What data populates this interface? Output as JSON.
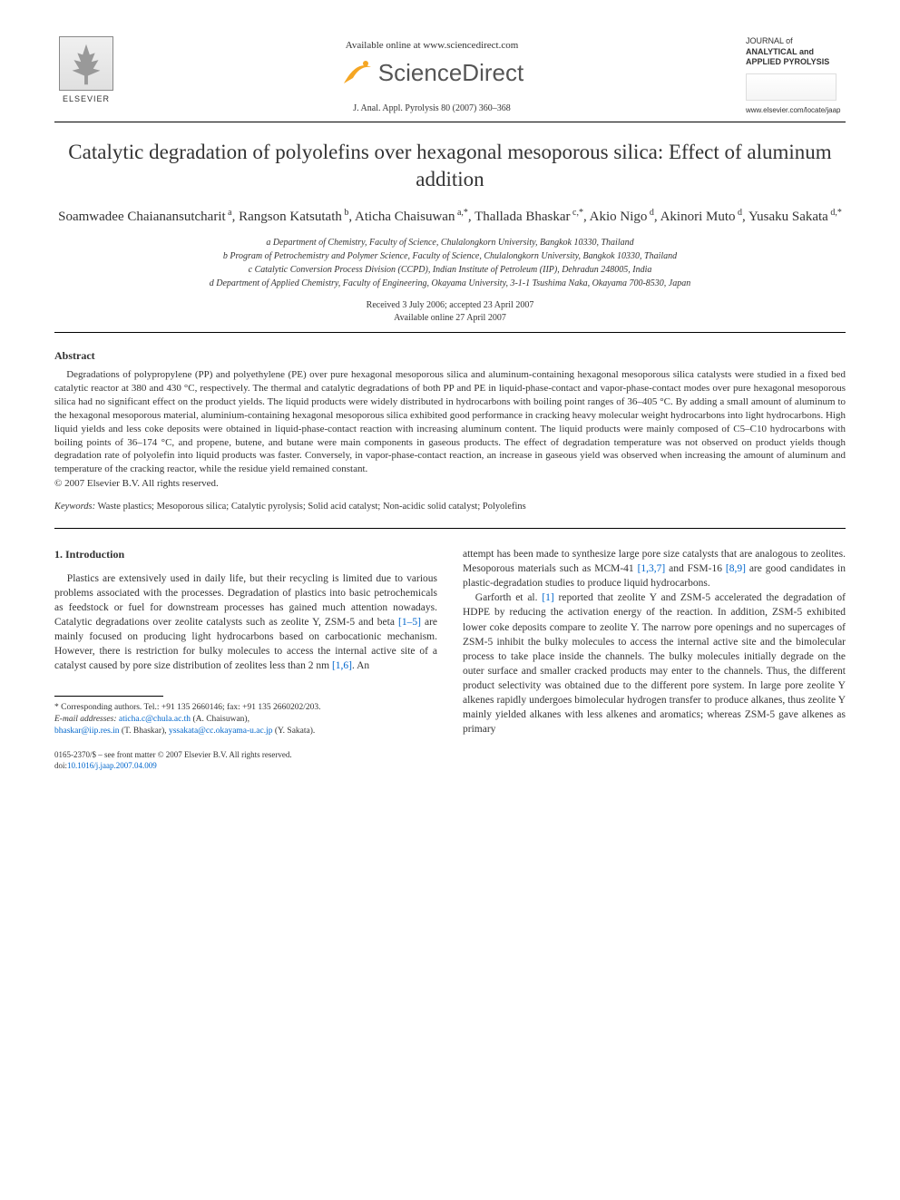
{
  "header": {
    "publisher": "ELSEVIER",
    "available_online": "Available online at www.sciencedirect.com",
    "sciencedirect": "ScienceDirect",
    "journal_ref": "J. Anal. Appl. Pyrolysis 80 (2007) 360–368",
    "journal_name_line1": "JOURNAL of",
    "journal_name_line2": "ANALYTICAL and",
    "journal_name_line3": "APPLIED PYROLYSIS",
    "journal_url": "www.elsevier.com/locate/jaap"
  },
  "title": "Catalytic degradation of polyolefins over hexagonal mesoporous silica: Effect of aluminum addition",
  "authors_html": "Soamwadee Chaianansutcharit<sup> a</sup>, Rangson Katsutath<sup> b</sup>, Aticha Chaisuwan<sup> a,*</sup>, Thallada Bhaskar<sup> c,*</sup>, Akio Nigo<sup> d</sup>, Akinori Muto<sup> d</sup>, Yusaku Sakata<sup> d,*</sup>",
  "affiliations": [
    "a Department of Chemistry, Faculty of Science, Chulalongkorn University, Bangkok 10330, Thailand",
    "b Program of Petrochemistry and Polymer Science, Faculty of Science, Chulalongkorn University, Bangkok 10330, Thailand",
    "c Catalytic Conversion Process Division (CCPD), Indian Institute of Petroleum (IIP), Dehradun 248005, India",
    "d Department of Applied Chemistry, Faculty of Engineering, Okayama University, 3-1-1 Tsushima Naka, Okayama 700-8530, Japan"
  ],
  "dates": {
    "received_accepted": "Received 3 July 2006; accepted 23 April 2007",
    "online": "Available online 27 April 2007"
  },
  "abstract": {
    "heading": "Abstract",
    "body": "Degradations of polypropylene (PP) and polyethylene (PE) over pure hexagonal mesoporous silica and aluminum-containing hexagonal mesoporous silica catalysts were studied in a fixed bed catalytic reactor at 380 and 430 °C, respectively. The thermal and catalytic degradations of both PP and PE in liquid-phase-contact and vapor-phase-contact modes over pure hexagonal mesoporous silica had no significant effect on the product yields. The liquid products were widely distributed in hydrocarbons with boiling point ranges of 36–405 °C. By adding a small amount of aluminum to the hexagonal mesoporous material, aluminium-containing hexagonal mesoporous silica exhibited good performance in cracking heavy molecular weight hydrocarbons into light hydrocarbons. High liquid yields and less coke deposits were obtained in liquid-phase-contact reaction with increasing aluminum content. The liquid products were mainly composed of C5–C10 hydrocarbons with boiling points of 36–174 °C, and propene, butene, and butane were main components in gaseous products. The effect of degradation temperature was not observed on product yields though degradation rate of polyolefin into liquid products was faster. Conversely, in vapor-phase-contact reaction, an increase in gaseous yield was observed when increasing the amount of aluminum and temperature of the cracking reactor, while the residue yield remained constant.",
    "copyright": "© 2007 Elsevier B.V. All rights reserved."
  },
  "keywords": {
    "label": "Keywords:",
    "items": "Waste plastics; Mesoporous silica; Catalytic pyrolysis; Solid acid catalyst; Non-acidic solid catalyst; Polyolefins"
  },
  "intro": {
    "heading": "1. Introduction",
    "col1_p1_pre": "Plastics are extensively used in daily life, but their recycling is limited due to various problems associated with the processes. Degradation of plastics into basic petrochemicals as feedstock or fuel for downstream processes has gained much attention nowadays. Catalytic degradations over zeolite catalysts such as zeolite Y, ZSM-5 and beta ",
    "col1_ref1": "[1–5]",
    "col1_p1_mid": " are mainly focused on producing light hydrocarbons based on carbocationic mechanism. However, there is restriction for bulky molecules to access the internal active site of a catalyst caused by pore size distribution of zeolites less than 2 nm ",
    "col1_ref2": "[1,6]",
    "col1_p1_post": ". An",
    "col2_p1_pre": "attempt has been made to synthesize large pore size catalysts that are analogous to zeolites. Mesoporous materials such as MCM-41 ",
    "col2_ref1": "[1,3,7]",
    "col2_p1_mid1": " and FSM-16 ",
    "col2_ref2": "[8,9]",
    "col2_p1_post1": " are good candidates in plastic-degradation studies to produce liquid hydrocarbons.",
    "col2_p2_pre": "Garforth et al. ",
    "col2_ref3": "[1]",
    "col2_p2_post": " reported that zeolite Y and ZSM-5 accelerated the degradation of HDPE by reducing the activation energy of the reaction. In addition, ZSM-5 exhibited lower coke deposits compare to zeolite Y. The narrow pore openings and no supercages of ZSM-5 inhibit the bulky molecules to access the internal active site and the bimolecular process to take place inside the channels. The bulky molecules initially degrade on the outer surface and smaller cracked products may enter to the channels. Thus, the different product selectivity was obtained due to the different pore system. In large pore zeolite Y alkenes rapidly undergoes bimolecular hydrogen transfer to produce alkanes, thus zeolite Y mainly yielded alkanes with less alkenes and aromatics; whereas ZSM-5 gave alkenes as primary"
  },
  "footnotes": {
    "corr": "* Corresponding authors. Tel.: +91 135 2660146; fax: +91 135 2660202/203.",
    "email_label": "E-mail addresses:",
    "email1": "aticha.c@chula.ac.th",
    "email1_name": " (A. Chaisuwan),",
    "email2": "bhaskar@iip.res.in",
    "email2_name": " (T. Bhaskar), ",
    "email3": "yssakata@cc.okayama-u.ac.jp",
    "email3_name": " (Y. Sakata)."
  },
  "bottom": {
    "issn": "0165-2370/$ – see front matter © 2007 Elsevier B.V. All rights reserved.",
    "doi_label": "doi:",
    "doi": "10.1016/j.jaap.2007.04.009"
  },
  "colors": {
    "link": "#0066cc",
    "text": "#333333",
    "rule": "#000000"
  }
}
